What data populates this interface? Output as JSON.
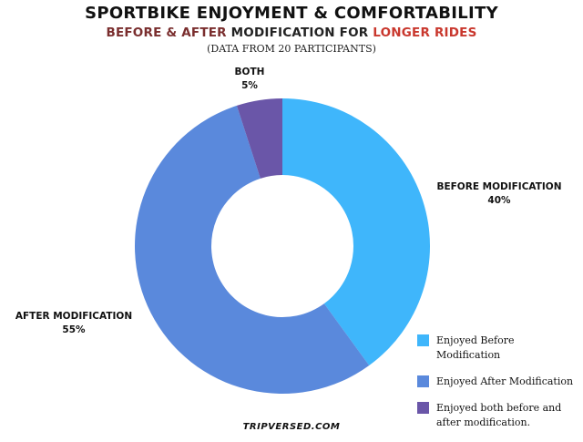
{
  "chart_data": {
    "type": "pie",
    "title": "SPORTBIKE ENJOYMENT & COMFORTABILITY",
    "subtitle": {
      "part1": "BEFORE & AFTER",
      "part2": " MODIFICATION FOR ",
      "part3": "LONGER RIDES"
    },
    "note": "(DATA FROM 20 PARTICIPANTS)",
    "donut": true,
    "slices": [
      {
        "label": "BEFORE MODIFICATION",
        "value": 40,
        "value_label": "40%",
        "color": "#3fb6fb"
      },
      {
        "label": "AFTER MODIFICATION",
        "value": 55,
        "value_label": "55%",
        "color": "#5a89dc"
      },
      {
        "label": "BOTH",
        "value": 5,
        "value_label": "5%",
        "color": "#6a56a8"
      }
    ],
    "legend": [
      {
        "text": "Enjoyed Before Modification",
        "color": "#3fb6fb"
      },
      {
        "text": "Enjoyed After Modification",
        "color": "#5a89dc"
      },
      {
        "text": "Enjoyed both before and after modification.",
        "color": "#6a56a8"
      }
    ],
    "legend_position": "bottom-right"
  },
  "watermark": "TRIPVERSED.COM"
}
